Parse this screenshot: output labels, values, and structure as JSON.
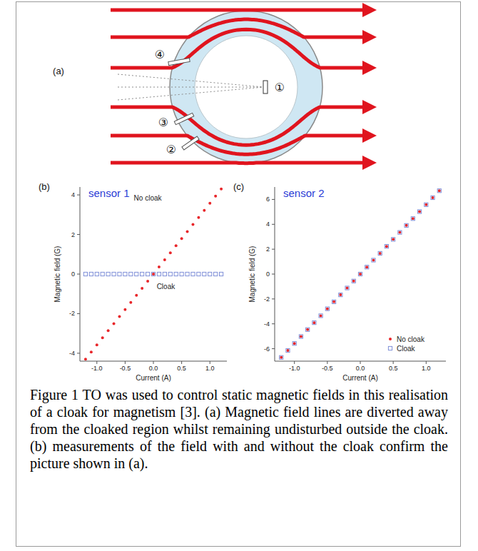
{
  "diagram": {
    "panel_label": "(a)",
    "sensors": [
      "①",
      "②",
      "③",
      "④"
    ]
  },
  "chart_data": [
    {
      "type": "scatter",
      "panel_label": "(b)",
      "title": "sensor 1",
      "x_label": "Current (A)",
      "y_label": "Magnetic field (G)",
      "x": [
        -1.2,
        -1.1,
        -1.0,
        -0.9,
        -0.8,
        -0.7,
        -0.6,
        -0.5,
        -0.4,
        -0.3,
        -0.2,
        -0.1,
        0,
        0.1,
        0.2,
        0.3,
        0.4,
        0.5,
        0.6,
        0.7,
        0.8,
        0.9,
        1.0,
        1.1,
        1.2
      ],
      "xlim": [
        -1.3,
        1.3
      ],
      "xticks": [
        {
          "value": -1,
          "label": "-1.0"
        },
        -0.5,
        {
          "value": 0,
          "label": "0.0"
        },
        0.5,
        {
          "value": 1,
          "label": "1.0"
        }
      ],
      "ylim": [
        -4.4,
        4.4
      ],
      "yticks": [
        -4,
        -2,
        0,
        2,
        4
      ],
      "grid": false,
      "series": [
        {
          "color": "#e8262a",
          "marker": "circle",
          "values": [
            -4.3,
            -3.94,
            -3.58,
            -3.22,
            -2.86,
            -2.51,
            -2.15,
            -1.79,
            -1.43,
            -1.07,
            -0.72,
            -0.36,
            0,
            0.36,
            0.72,
            1.07,
            1.43,
            1.79,
            2.15,
            2.51,
            2.86,
            3.22,
            3.58,
            3.94,
            4.3
          ]
        },
        {
          "color": "#7f8fd8",
          "marker": "square",
          "values": [
            0,
            0,
            0,
            0,
            0,
            0,
            0,
            0,
            0,
            0,
            0,
            0,
            0,
            0,
            0,
            0,
            0,
            0,
            0,
            0,
            0,
            0,
            0,
            0,
            0
          ]
        }
      ],
      "annotations": [
        {
          "text": "No cloak",
          "x": -0.1,
          "y": 3.7
        },
        {
          "text": "Cloak",
          "x": 0.22,
          "y": -0.75
        }
      ]
    },
    {
      "type": "scatter",
      "panel_label": "(c)",
      "title": "sensor 2",
      "x_label": "Current (A)",
      "y_label": "Magnetic field (G)",
      "x": [
        -1.2,
        -1.1,
        -1.0,
        -0.9,
        -0.8,
        -0.7,
        -0.6,
        -0.5,
        -0.4,
        -0.3,
        -0.2,
        -0.1,
        0,
        0.1,
        0.2,
        0.3,
        0.4,
        0.5,
        0.6,
        0.7,
        0.8,
        0.9,
        1.0,
        1.1,
        1.2
      ],
      "xlim": [
        -1.3,
        1.3
      ],
      "xticks": [
        {
          "value": -1,
          "label": "-1.0"
        },
        -0.5,
        {
          "value": 0,
          "label": "0.0"
        },
        0.5,
        {
          "value": 1,
          "label": "1.0"
        }
      ],
      "ylim": [
        -7,
        7
      ],
      "yticks": [
        -6,
        -4,
        -2,
        0,
        2,
        4,
        6
      ],
      "grid": false,
      "legend": "lower right",
      "series": [
        {
          "name": "No cloak",
          "color": "#e8262a",
          "marker": "circle",
          "values": [
            -6.7,
            -6.14,
            -5.58,
            -5.02,
            -4.46,
            -3.91,
            -3.35,
            -2.79,
            -2.23,
            -1.67,
            -1.12,
            -0.56,
            0,
            0.56,
            1.12,
            1.67,
            2.23,
            2.79,
            3.35,
            3.91,
            4.46,
            5.02,
            5.58,
            6.14,
            6.7
          ]
        },
        {
          "name": "Cloak",
          "color": "#7f8fd8",
          "marker": "square",
          "values": [
            -6.7,
            -6.14,
            -5.58,
            -5.02,
            -4.46,
            -3.91,
            -3.35,
            -2.79,
            -2.23,
            -1.67,
            -1.12,
            -0.56,
            0,
            0.56,
            1.12,
            1.67,
            2.23,
            2.79,
            3.35,
            3.91,
            4.46,
            5.02,
            5.58,
            6.14,
            6.7
          ]
        }
      ]
    }
  ],
  "caption": "Figure 1 TO was used to control static magnetic fields in this realisation of a cloak for magnetism [3]. (a) Magnetic field lines are diverted away from the cloaked region whilst remaining undisturbed outside the cloak. (b) measurements of the field with and without the cloak confirm the picture shown in (a)."
}
